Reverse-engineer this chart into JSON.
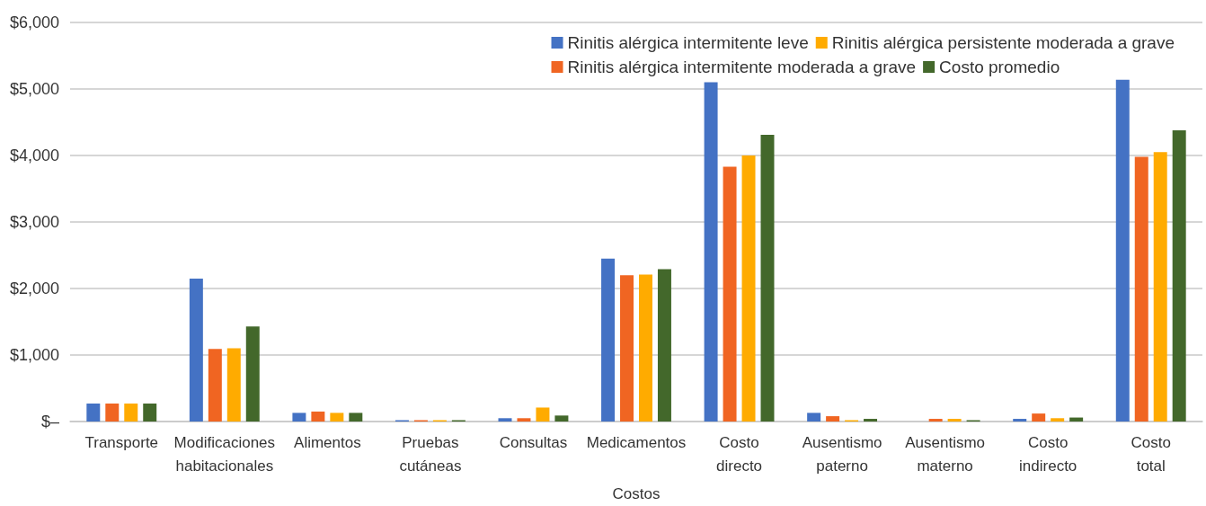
{
  "chart_data": {
    "type": "bar",
    "xlabel": "Costos",
    "categories": [
      "Transporte",
      "Modificaciones habitacionales",
      "Alimentos",
      "Pruebas cutáneas",
      "Consultas",
      "Medicamentos",
      "Costo directo",
      "Ausentismo paterno",
      "Ausentismo materno",
      "Costo indirecto",
      "Costo total"
    ],
    "series": [
      {
        "name": "Rinitis alérgica intermitente leve",
        "color": "#4472c4",
        "values": [
          270,
          2150,
          130,
          20,
          50,
          2450,
          5100,
          130,
          0,
          40,
          5140
        ]
      },
      {
        "name": "Rinitis alérgica intermitente moderada a grave",
        "color": "#f06522",
        "values": [
          270,
          1090,
          150,
          20,
          50,
          2200,
          3830,
          80,
          40,
          120,
          3980
        ]
      },
      {
        "name": "Rinitis alérgica persistente moderada a grave",
        "color": "#ffab00",
        "values": [
          270,
          1100,
          130,
          20,
          210,
          2210,
          4000,
          20,
          40,
          50,
          4050
        ]
      },
      {
        "name": "Costo promedio",
        "color": "#43682b",
        "values": [
          270,
          1430,
          130,
          20,
          90,
          2290,
          4310,
          40,
          20,
          60,
          4380
        ]
      }
    ],
    "ylim": [
      0,
      6000
    ],
    "yticks": [
      {
        "value": 0,
        "label": "$–"
      },
      {
        "value": 1000,
        "label": "$1,000"
      },
      {
        "value": 2000,
        "label": "$2,000"
      },
      {
        "value": 3000,
        "label": "$3,000"
      },
      {
        "value": 4000,
        "label": "$4,000"
      },
      {
        "value": 5000,
        "label": "$5,000"
      },
      {
        "value": 6000,
        "label": "$6,000"
      }
    ],
    "grid": "y",
    "legend": "top right"
  }
}
